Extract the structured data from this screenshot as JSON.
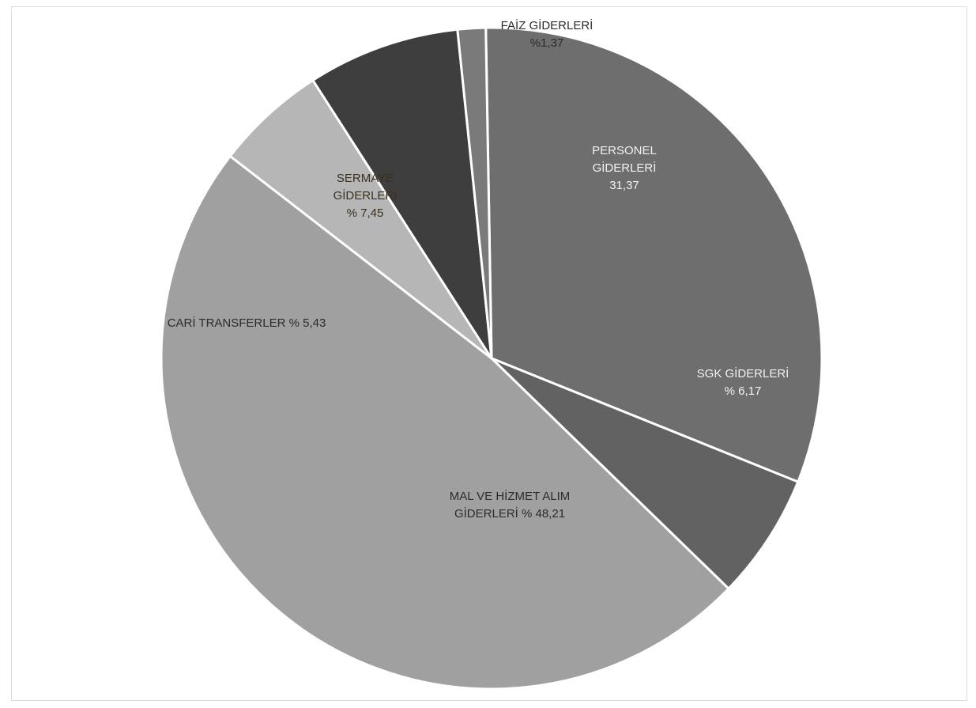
{
  "chart_data": {
    "type": "pie",
    "title": "",
    "slices": [
      {
        "name": "PERSONEL GİDERLERİ",
        "value": 31.37,
        "color": "#6e6e6e",
        "text_color": "#f2f2f2",
        "label_lines": [
          "PERSONEL",
          "GİDERLERİ",
          "31,37"
        ]
      },
      {
        "name": "SGK GİDERLERİ",
        "value": 6.17,
        "color": "#626262",
        "text_color": "#f2f2f2",
        "label_lines": [
          "SGK GİDERLERİ",
          "% 6,17"
        ]
      },
      {
        "name": "MAL VE HİZMET ALIM GİDERLERİ",
        "value": 48.21,
        "color": "#a0a0a0",
        "text_color": "#2b2b2b",
        "label_lines": [
          "MAL VE HİZMET ALIM",
          "GİDERLERİ  % 48,21"
        ]
      },
      {
        "name": "CARİ TRANSFERLER",
        "value": 5.43,
        "color": "#b6b6b6",
        "text_color": "#2b2b2b",
        "label_lines": [
          "CARİ TRANSFERLER  % 5,43"
        ]
      },
      {
        "name": "SERMAYE GİDERLERİ",
        "value": 7.45,
        "color": "#3e3e3e",
        "text_color": "#3a3020",
        "label_lines": [
          "SERMAYE",
          "GİDERLERİ",
          "% 7,45"
        ]
      },
      {
        "name": "FAİZ GİDERLERİ",
        "value": 1.37,
        "color": "#7a7a7a",
        "text_color": "#2b2b2b",
        "label_lines": [
          "FAİZ GİDERLERİ",
          "%1,37"
        ]
      }
    ]
  }
}
